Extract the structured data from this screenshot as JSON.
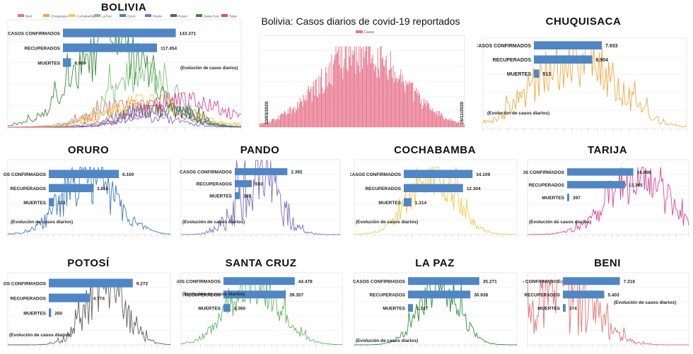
{
  "panels": [
    {
      "id": "bolivia",
      "title": "BOLIVIA",
      "color": "#2e7d32",
      "confirmed": "143.371",
      "recovered": "117.454",
      "deaths": "8.959",
      "note": "(Evolución de casos diarios)",
      "legend": [
        "Beni",
        "Chuquisaca",
        "Cochabamba",
        "La Paz",
        "Oruro",
        "Pando",
        "Potosí",
        "Santa Cruz",
        "Tarija"
      ],
      "legend_colors": [
        "#e57373",
        "#f4a742",
        "#f2c94c",
        "#7bc67b",
        "#4a7fbf",
        "#7e6bc4",
        "#606060",
        "#3a8a3a",
        "#d9479a"
      ],
      "bars": [
        0.84,
        0.7,
        0.06
      ],
      "peak": 0.45,
      "spread": 0.16,
      "noise": 0.45
    },
    {
      "id": "chuquisaca",
      "title": "CHUQUISACA",
      "color": "#f4a742",
      "confirmed": "7.933",
      "recovered": "6.904",
      "deaths": "513",
      "note": "(Evolución de casos diarios)",
      "bars": [
        0.64,
        0.55,
        0.05
      ],
      "peak": 0.45,
      "spread": 0.2,
      "noise": 0.5
    },
    {
      "id": "oruro",
      "title": "ORURO",
      "color": "#3b7bbf",
      "confirmed": "6.100",
      "recovered": "3.816",
      "deaths": "323",
      "note": "(Evolución de casos diarios)",
      "bars": [
        0.66,
        0.42,
        0.05
      ],
      "peak": 0.5,
      "spread": 0.16,
      "noise": 0.6
    },
    {
      "id": "pando",
      "title": "PANDO",
      "color": "#7e6bc4",
      "confirmed": "2.392",
      "recovered": "593",
      "deaths": "165",
      "note": "(Evolución de casos diarios)",
      "bars": [
        0.62,
        0.2,
        0.06
      ],
      "peak": 0.48,
      "spread": 0.12,
      "noise": 0.8
    },
    {
      "id": "cochabamba",
      "title": "COCHABAMBA",
      "color": "#f2c94c",
      "confirmed": "14.109",
      "recovered": "12.304",
      "deaths": "1.314",
      "note": "(Evolución de casos diarios)",
      "bars": [
        0.72,
        0.62,
        0.08
      ],
      "peak": 0.48,
      "spread": 0.14,
      "noise": 0.45
    },
    {
      "id": "tarija",
      "title": "TARIJA",
      "color": "#d9479a",
      "confirmed": "16.498",
      "recovered": "13.365",
      "deaths": "397",
      "note": "(Evolución de casos diarios)",
      "bars": [
        0.72,
        0.63,
        0.02
      ],
      "peak": 0.68,
      "spread": 0.18,
      "noise": 0.55
    },
    {
      "id": "potosi",
      "title": "POTOSÍ",
      "color": "#606060",
      "confirmed": "9.272",
      "recovered": "4.774",
      "deaths": "260",
      "note": "(Evolución de casos diarios)",
      "bars": [
        0.72,
        0.35,
        0.02
      ],
      "peak": 0.6,
      "spread": 0.12,
      "noise": 0.6
    },
    {
      "id": "santacruz",
      "title": "SANTA CRUZ",
      "color": "#5fb85f",
      "confirmed": "44.478",
      "recovered": "39.357",
      "deaths": "4.360",
      "note": "(Evolución de casos diarios)",
      "bars": [
        0.72,
        0.63,
        0.07
      ],
      "peak": 0.45,
      "spread": 0.16,
      "noise": 0.4
    },
    {
      "id": "lapaz",
      "title": "LA PAZ",
      "color": "#2e8b3e",
      "confirmed": "35.271",
      "recovered": "30.938",
      "deaths": "1.147",
      "note": "(Evolución de casos diarios)",
      "bars": [
        0.72,
        0.63,
        0.05
      ],
      "peak": 0.52,
      "spread": 0.12,
      "noise": 0.4
    },
    {
      "id": "beni",
      "title": "BENI",
      "color": "#e57373",
      "confirmed": "7.318",
      "recovered": "5.403",
      "deaths": "374",
      "note": "(Evolución de casos diarios)",
      "bars": [
        0.62,
        0.45,
        0.03
      ],
      "peak": 0.22,
      "spread": 0.18,
      "noise": 0.85
    }
  ],
  "main": {
    "title": "Bolivia: Casos diarios de covid-19 reportados",
    "legend": "Casos",
    "color": "#e8778d",
    "date_start": "10/03/2020",
    "date_end": "16/11/2020",
    "peak": 0.5,
    "spread": 0.2,
    "noise": 0.35
  },
  "labels": {
    "confirmed": "CASOS CONFIRMADOS",
    "recovered": "RECUPERADOS",
    "deaths": "MUERTES"
  },
  "bar_color": "#4f86c6",
  "chart_data": {
    "type": "bar",
    "categories": [
      "Bolivia",
      "Chuquisaca",
      "Oruro",
      "Pando",
      "Cochabamba",
      "Tarija",
      "Potosí",
      "Santa Cruz",
      "La Paz",
      "Beni"
    ],
    "series": [
      {
        "name": "CASOS CONFIRMADOS",
        "values": [
          143371,
          7933,
          6100,
          2392,
          14109,
          16498,
          9272,
          44478,
          35271,
          7318
        ]
      },
      {
        "name": "RECUPERADOS",
        "values": [
          117454,
          6904,
          3816,
          593,
          12304,
          13365,
          4774,
          39357,
          30938,
          5403
        ]
      },
      {
        "name": "MUERTES",
        "values": [
          8959,
          513,
          323,
          165,
          1314,
          397,
          260,
          4360,
          1147,
          374
        ]
      }
    ]
  }
}
